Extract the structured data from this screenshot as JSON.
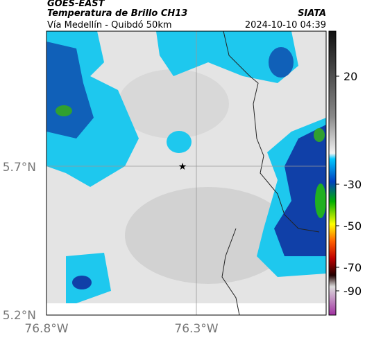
{
  "header": {
    "title": "GOES-EAST",
    "subtitle": "Temperatura de Brillo CH13",
    "source": "SIATA",
    "location": "Vía Medellín - Quibdó 50km",
    "datetime": "2024-10-10 04:39"
  },
  "map": {
    "lat_labels": [
      "5.7°N",
      "5.2°N"
    ],
    "lon_labels": [
      "76.8°W",
      "76.3°W"
    ]
  },
  "colorbar": {
    "ticks": [
      20,
      -30,
      -50,
      -70,
      -90
    ]
  }
}
